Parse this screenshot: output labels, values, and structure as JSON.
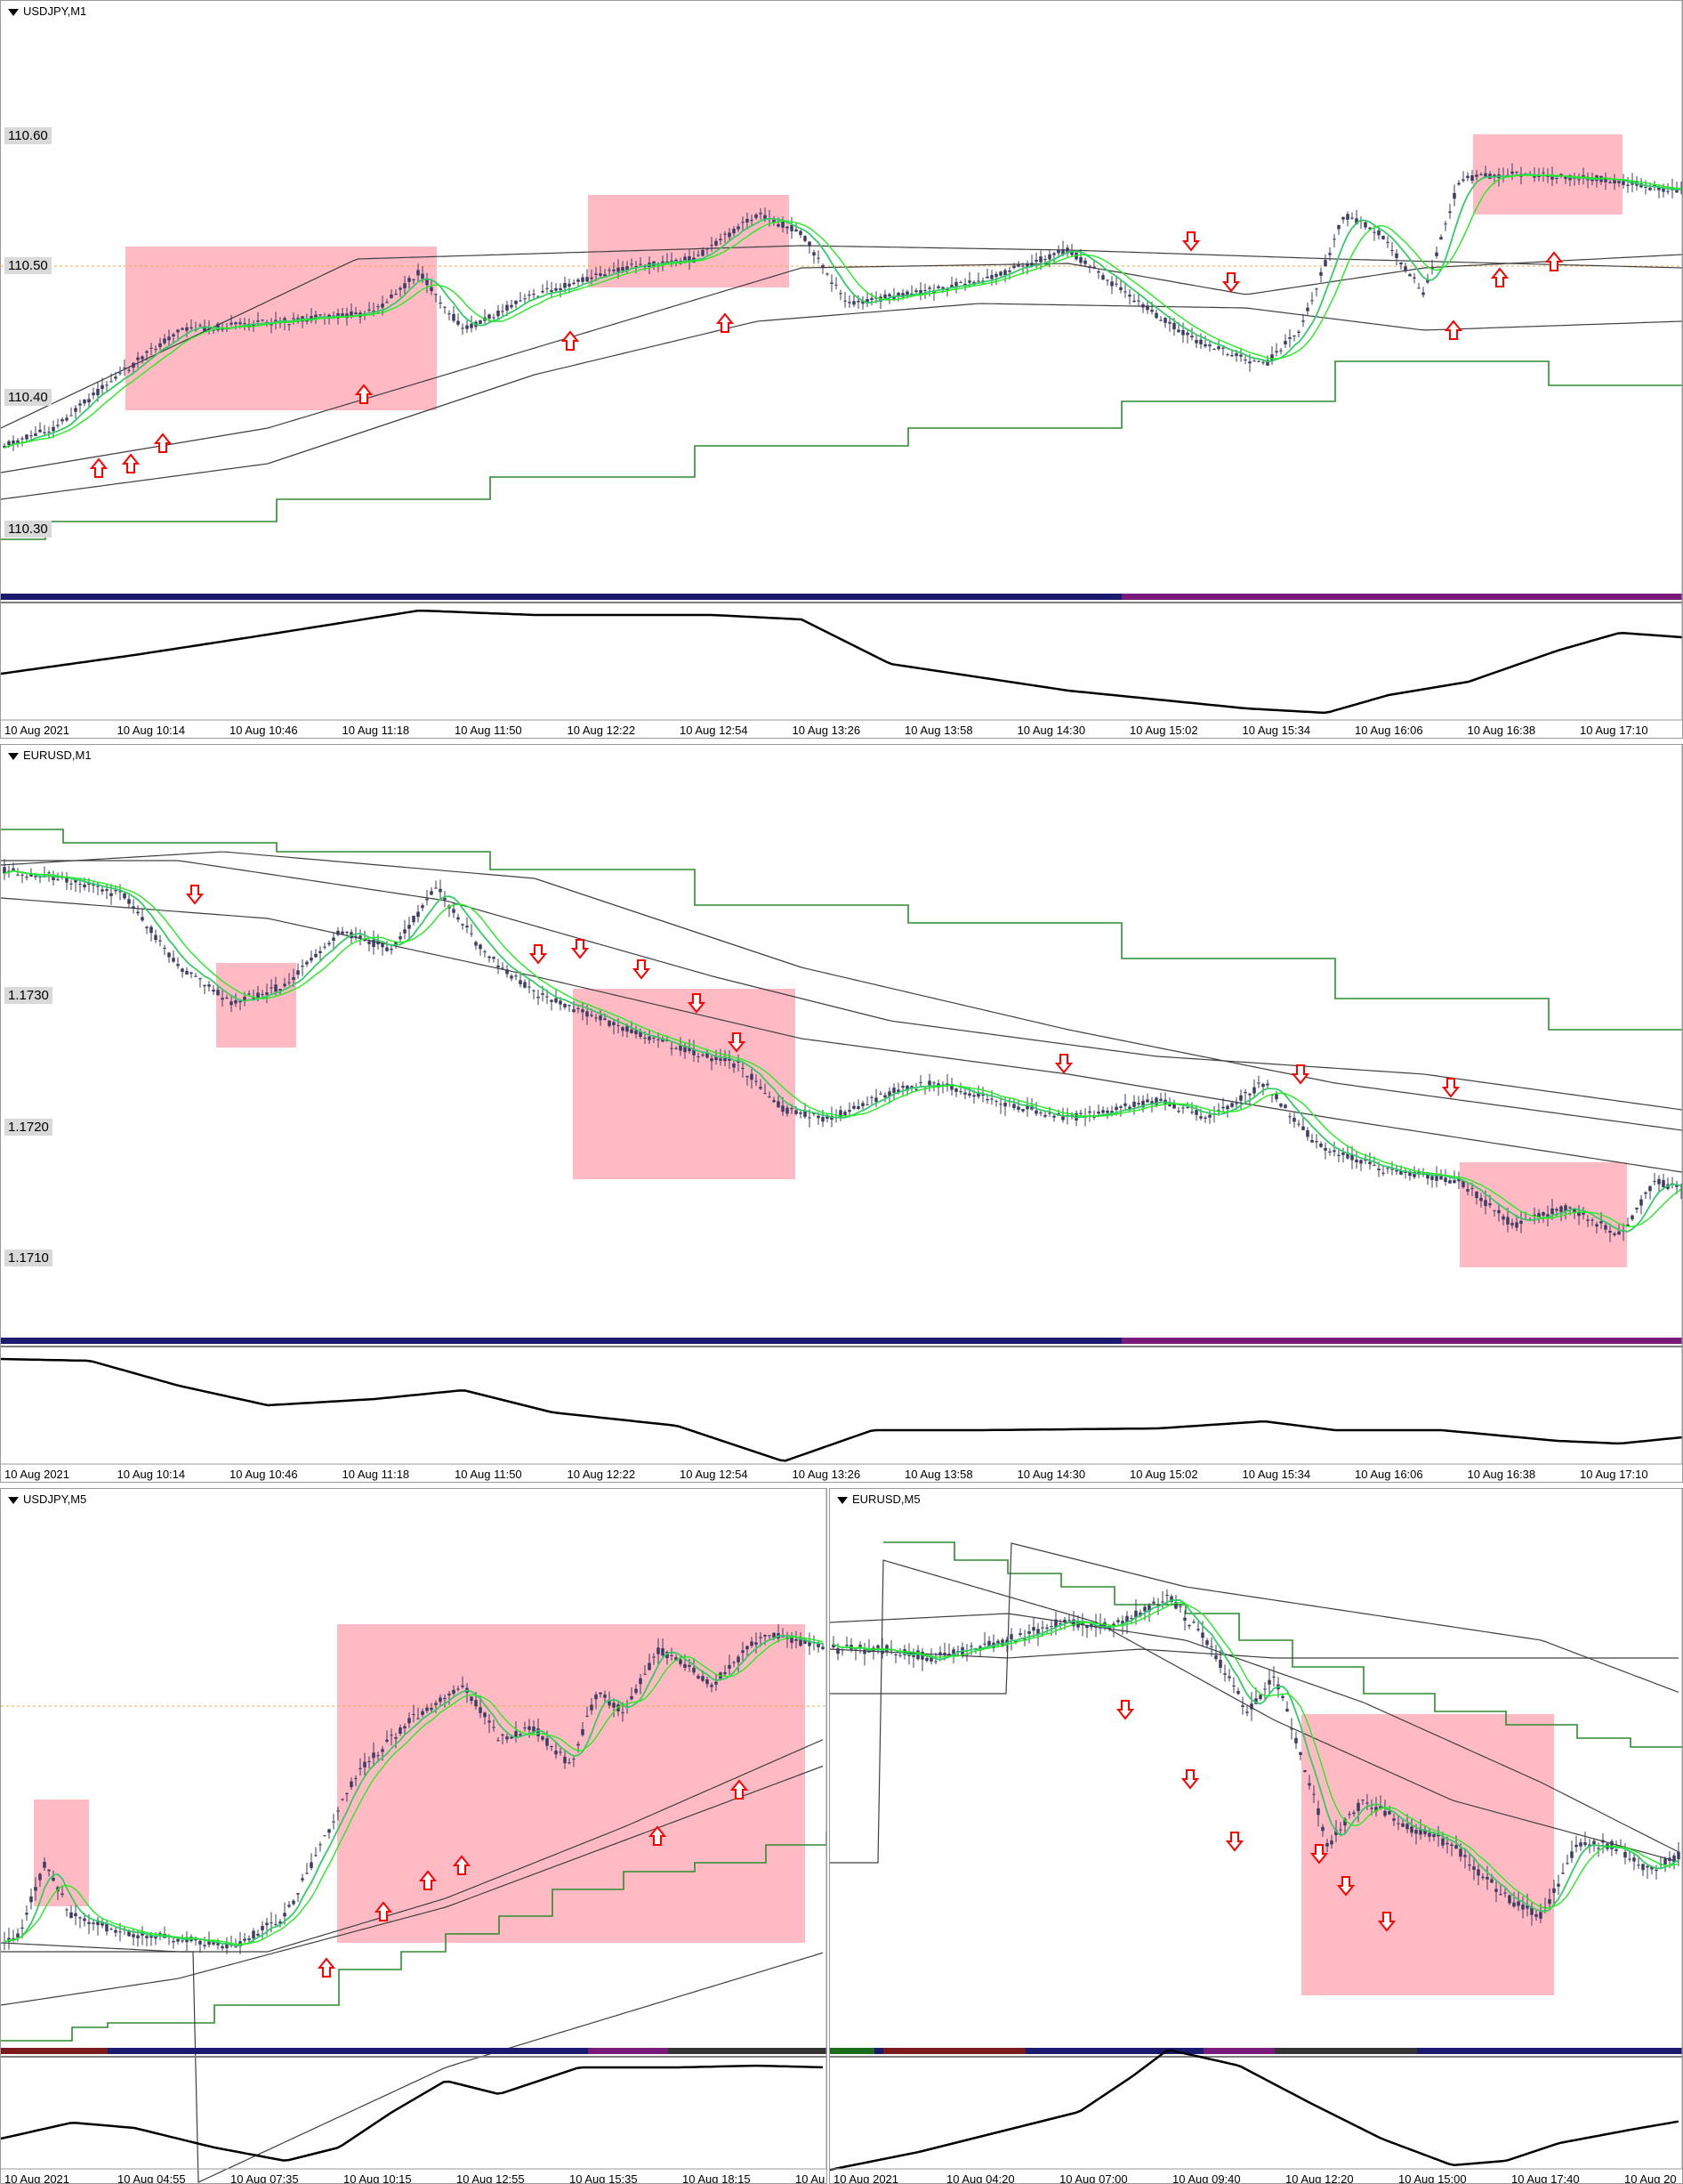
{
  "charts": [
    {
      "symbol_title": "USDJPY,M1",
      "price_labels": [
        "110.60",
        "110.50",
        "110.40",
        "110.30"
      ],
      "time_labels": [
        "10 Aug 2021",
        "10 Aug 10:14",
        "10 Aug 10:46",
        "10 Aug 11:18",
        "10 Aug 11:50",
        "10 Aug 12:22",
        "10 Aug 12:54",
        "10 Aug 13:26",
        "10 Aug 13:58",
        "10 Aug 14:30",
        "10 Aug 15:02",
        "10 Aug 15:34",
        "10 Aug 16:06",
        "10 Aug 16:38",
        "10 Aug 17:10"
      ]
    },
    {
      "symbol_title": "EURUSD,M1",
      "price_labels": [
        "1.1730",
        "1.1720",
        "1.1710"
      ],
      "time_labels": [
        "10 Aug 2021",
        "10 Aug 10:14",
        "10 Aug 10:46",
        "10 Aug 11:18",
        "10 Aug 11:50",
        "10 Aug 12:22",
        "10 Aug 12:54",
        "10 Aug 13:26",
        "10 Aug 13:58",
        "10 Aug 14:30",
        "10 Aug 15:02",
        "10 Aug 15:34",
        "10 Aug 16:06",
        "10 Aug 16:38",
        "10 Aug 17:10"
      ]
    },
    {
      "symbol_title": "USDJPY,M5",
      "time_labels": [
        "10 Aug 2021",
        "10 Aug 04:55",
        "10 Aug 07:35",
        "10 Aug 10:15",
        "10 Aug 12:55",
        "10 Aug 15:35",
        "10 Aug 18:15",
        "10 Au"
      ]
    },
    {
      "symbol_title": "EURUSD,M5",
      "time_labels": [
        "10 Aug 2021",
        "10 Aug 04:20",
        "10 Aug 07:00",
        "10 Aug 09:40",
        "10 Aug 12:20",
        "10 Aug 15:00",
        "10 Aug 17:40",
        "10 Aug 20"
      ]
    }
  ],
  "colors": {
    "candles": "#3c3c64",
    "ema_fast": "#33cc66",
    "ema_slow": "#22ee22",
    "ma": "#404040",
    "step": "#2e8b2e",
    "zone": "#ffb6c1",
    "arrow": "#ff0000",
    "osc": "#000000",
    "price_line": "#ffa640"
  }
}
